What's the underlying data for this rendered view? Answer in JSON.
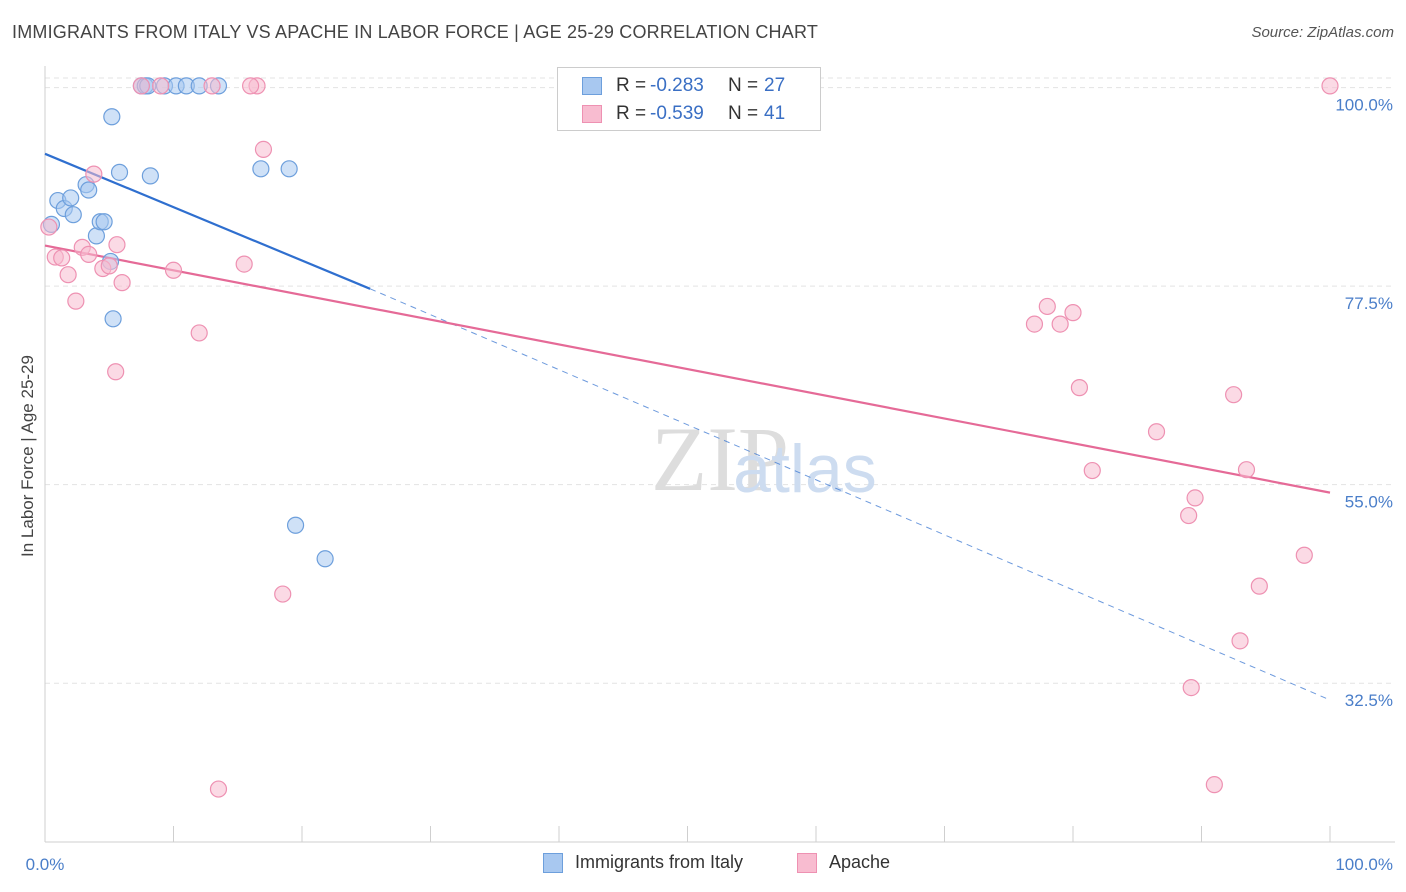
{
  "title": "IMMIGRANTS FROM ITALY VS APACHE IN LABOR FORCE | AGE 25-29 CORRELATION CHART",
  "source": "Source: ZipAtlas.com",
  "watermark": {
    "zip": "ZIP",
    "atlas": "atlas"
  },
  "colors": {
    "italy_fill": "#a8c8f0",
    "italy_stroke": "#6d9fdc",
    "italy_line": "#2f6fcf",
    "apache_fill": "#f8bcd0",
    "apache_stroke": "#ee91b2",
    "apache_line": "#e56a97",
    "tick_text": "#4a7ec9",
    "grid": "#e3e3e3"
  },
  "legend": {
    "rows": [
      {
        "r_label": "R =",
        "r_value": "-0.283",
        "n_label": "N =",
        "n_value": "27"
      },
      {
        "r_label": "R =",
        "r_value": "-0.539",
        "n_label": "N =",
        "n_value": "41"
      }
    ]
  },
  "bottom_legend": {
    "italy": "Immigrants from Italy",
    "apache": "Apache"
  },
  "chart_data": {
    "type": "scatter",
    "xlabel": "",
    "ylabel": "In Labor Force | Age 25-29",
    "xlim": [
      0,
      100
    ],
    "ylim": [
      14.5,
      102
    ],
    "x_tick_labels": [
      "0.0%",
      "100.0%"
    ],
    "y_ticks": [
      100.0,
      77.5,
      55.0,
      32.5
    ],
    "y_tick_labels": [
      "100.0%",
      "77.5%",
      "55.0%",
      "32.5%"
    ],
    "grid": true,
    "legend_position": "top-center",
    "series": [
      {
        "name": "Immigrants from Italy",
        "points": [
          [
            0.5,
            84.5
          ],
          [
            1.0,
            87.2
          ],
          [
            1.5,
            86.3
          ],
          [
            2.0,
            87.5
          ],
          [
            2.2,
            85.6
          ],
          [
            3.2,
            89.0
          ],
          [
            3.4,
            88.4
          ],
          [
            4.0,
            83.2
          ],
          [
            4.3,
            84.8
          ],
          [
            4.6,
            84.8
          ],
          [
            5.1,
            80.3
          ],
          [
            5.3,
            73.8
          ],
          [
            5.2,
            96.7
          ],
          [
            5.8,
            90.4
          ],
          [
            8.2,
            90.0
          ],
          [
            7.5,
            100.2
          ],
          [
            7.8,
            100.2
          ],
          [
            8.0,
            100.2
          ],
          [
            9.3,
            100.2
          ],
          [
            10.2,
            100.2
          ],
          [
            11.0,
            100.2
          ],
          [
            12.0,
            100.2
          ],
          [
            13.5,
            100.2
          ],
          [
            16.8,
            90.8
          ],
          [
            19.0,
            90.8
          ],
          [
            19.5,
            50.4
          ],
          [
            21.8,
            46.6
          ]
        ],
        "trend": {
          "x": [
            0,
            25.3
          ],
          "y": [
            92.5,
            77.2
          ],
          "dashed_extension": {
            "x": [
              25.3,
              100
            ],
            "y": [
              77.2,
              30.6
            ]
          }
        }
      },
      {
        "name": "Apache",
        "points": [
          [
            0.3,
            84.2
          ],
          [
            0.8,
            80.8
          ],
          [
            1.3,
            80.7
          ],
          [
            1.8,
            78.8
          ],
          [
            2.4,
            75.8
          ],
          [
            2.9,
            81.9
          ],
          [
            3.4,
            81.1
          ],
          [
            3.8,
            90.2
          ],
          [
            4.5,
            79.5
          ],
          [
            5.0,
            79.8
          ],
          [
            5.5,
            67.8
          ],
          [
            6.0,
            77.9
          ],
          [
            5.6,
            82.2
          ],
          [
            7.5,
            100.2
          ],
          [
            9.0,
            100.2
          ],
          [
            10.0,
            79.3
          ],
          [
            12.0,
            72.2
          ],
          [
            13.0,
            100.2
          ],
          [
            15.5,
            80.0
          ],
          [
            16.5,
            100.2
          ],
          [
            17.0,
            93.0
          ],
          [
            18.5,
            42.6
          ],
          [
            13.5,
            20.5
          ],
          [
            77.0,
            73.2
          ],
          [
            78.0,
            75.2
          ],
          [
            79.0,
            73.2
          ],
          [
            80.0,
            74.5
          ],
          [
            80.5,
            66.0
          ],
          [
            81.5,
            56.6
          ],
          [
            86.5,
            61.0
          ],
          [
            89.0,
            51.5
          ],
          [
            89.5,
            53.5
          ],
          [
            89.2,
            32.0
          ],
          [
            91.0,
            21.0
          ],
          [
            92.5,
            65.2
          ],
          [
            93.0,
            37.3
          ],
          [
            93.5,
            56.7
          ],
          [
            94.5,
            43.5
          ],
          [
            98.0,
            47.0
          ],
          [
            100.0,
            100.2
          ],
          [
            16.0,
            100.2
          ]
        ],
        "trend": {
          "x": [
            0,
            100
          ],
          "y": [
            82.1,
            54.1
          ]
        }
      }
    ]
  }
}
